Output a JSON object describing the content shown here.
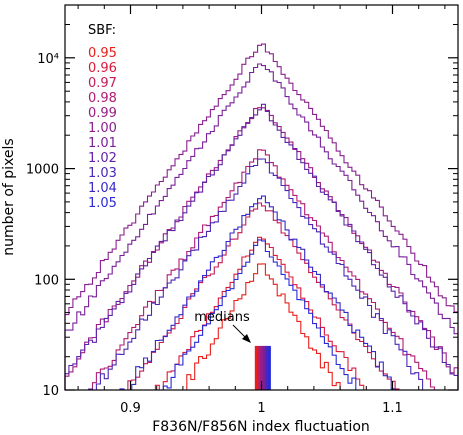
{
  "chart_data": {
    "type": "line",
    "title": "",
    "xlabel": "F836N/F856N index fluctuation",
    "ylabel": "number of pixels",
    "xlim": [
      0.85,
      1.15
    ],
    "ylim": [
      10,
      30000
    ],
    "yscale": "log",
    "x_ticks": [
      {
        "value": 0.9,
        "label": "0.9"
      },
      {
        "value": 1.0,
        "label": "1"
      },
      {
        "value": 1.1,
        "label": "1.1"
      }
    ],
    "y_ticks": [
      {
        "value": 10,
        "label": "10"
      },
      {
        "value": 100,
        "label": "100"
      },
      {
        "value": 1000,
        "label": "1000"
      },
      {
        "value": 10000,
        "label": "10⁴"
      }
    ],
    "legend_title": "SBF:",
    "legend_position": "top-left",
    "series": [
      {
        "name": "0.95",
        "color": "#e8201a",
        "peak": 140,
        "width": 0.043
      },
      {
        "name": "0.96",
        "color": "#d81a3c",
        "peak": 260,
        "width": 0.046
      },
      {
        "name": "0.97",
        "color": "#c41d55",
        "peak": 520,
        "width": 0.049
      },
      {
        "name": "0.98",
        "color": "#b01c73",
        "peak": 1500,
        "width": 0.05
      },
      {
        "name": "0.99",
        "color": "#9b1d85",
        "peak": 4000,
        "width": 0.05
      },
      {
        "name": "1.00",
        "color": "#8a2090",
        "peak": 14000,
        "width": 0.05
      },
      {
        "name": "1.01",
        "color": "#7a209a",
        "peak": 9500,
        "width": 0.05
      },
      {
        "name": "1.02",
        "color": "#6024a8",
        "peak": 3800,
        "width": 0.05
      },
      {
        "name": "1.03",
        "color": "#4a28b8",
        "peak": 1300,
        "width": 0.05
      },
      {
        "name": "1.04",
        "color": "#3528c8",
        "peak": 600,
        "width": 0.048
      },
      {
        "name": "1.05",
        "color": "#2a2ad8",
        "peak": 230,
        "width": 0.045
      }
    ],
    "annotation": {
      "text": "medians"
    },
    "median_markers": [
      {
        "value": 0.996,
        "color": "#e8201a"
      },
      {
        "value": 0.998,
        "color": "#c41d55"
      },
      {
        "value": 1.0,
        "color": "#9b1d85"
      },
      {
        "value": 1.002,
        "color": "#7a209a"
      },
      {
        "value": 1.004,
        "color": "#4a28b8"
      },
      {
        "value": 1.006,
        "color": "#2a2ad8"
      }
    ]
  }
}
